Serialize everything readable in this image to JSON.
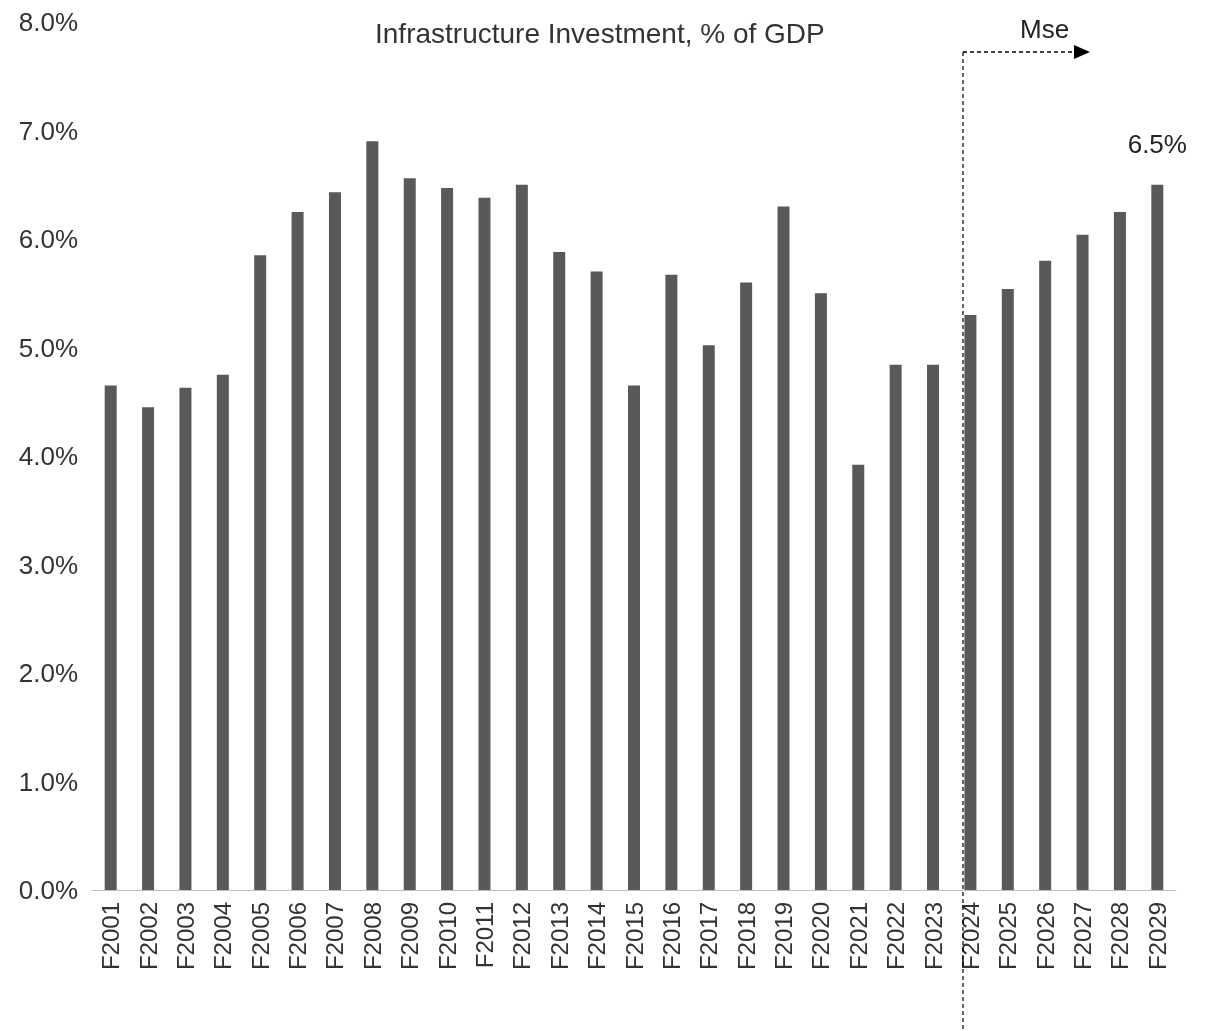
{
  "chart_data": {
    "type": "bar",
    "title": "Infrastructure Investment, % of GDP",
    "categories": [
      "F2001",
      "F2002",
      "F2003",
      "F2004",
      "F2005",
      "F2006",
      "F2007",
      "F2008",
      "F2009",
      "F2010",
      "F2011",
      "F2012",
      "F2013",
      "F2014",
      "F2015",
      "F2016",
      "F2017",
      "F2018",
      "F2019",
      "F2020",
      "F2021",
      "F2022",
      "F2023",
      "F2024",
      "F2025",
      "F2026",
      "F2027",
      "F2028",
      "F2029"
    ],
    "values": [
      4.65,
      4.45,
      4.63,
      4.75,
      5.85,
      6.25,
      6.43,
      6.9,
      6.56,
      6.47,
      6.38,
      6.5,
      5.88,
      5.7,
      4.65,
      5.67,
      5.02,
      5.6,
      6.3,
      5.5,
      3.92,
      4.84,
      4.84,
      5.3,
      5.54,
      5.8,
      6.04,
      6.25,
      6.5
    ],
    "value_labels": [
      null,
      null,
      null,
      null,
      null,
      null,
      null,
      null,
      null,
      null,
      null,
      null,
      null,
      null,
      null,
      null,
      null,
      null,
      null,
      null,
      null,
      null,
      null,
      null,
      null,
      null,
      null,
      null,
      "6.5%"
    ],
    "color": "#595959",
    "ylim": [
      0,
      8
    ],
    "yticks": [
      {
        "value": 0,
        "label": "0.0%"
      },
      {
        "value": 1,
        "label": "1.0%"
      },
      {
        "value": 2,
        "label": "2.0%"
      },
      {
        "value": 3,
        "label": "3.0%"
      },
      {
        "value": 4,
        "label": "4.0%"
      },
      {
        "value": 5,
        "label": "5.0%"
      },
      {
        "value": 6,
        "label": "6.0%"
      },
      {
        "value": 7,
        "label": "7.0%"
      },
      {
        "value": 8,
        "label": "8.0%"
      }
    ],
    "grid": false,
    "annotations": [
      "Mse"
    ]
  }
}
